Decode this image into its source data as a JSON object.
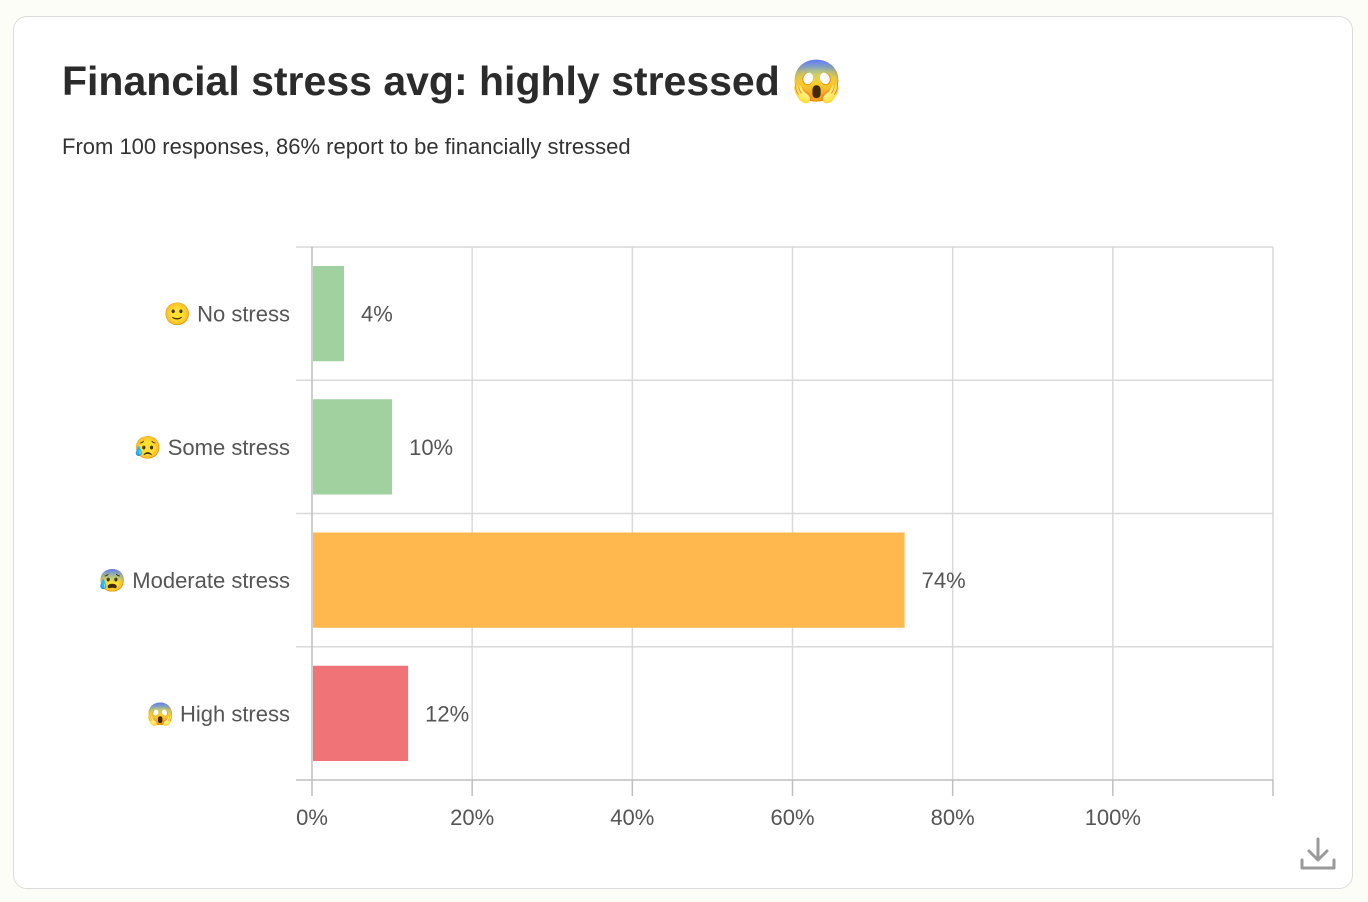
{
  "card": {
    "title": "Financial stress avg: highly stressed 😱",
    "subtitle": "From 100 responses, 86% report to be financially stressed"
  },
  "chart_data": {
    "type": "bar",
    "orientation": "horizontal",
    "categories": [
      "🙂  No stress",
      "😥  Some stress",
      "😰  Moderate stress",
      "😱  High stress"
    ],
    "values": [
      4,
      10,
      74,
      12
    ],
    "value_labels": [
      "4%",
      "10%",
      "74%",
      "12%"
    ],
    "colors": [
      "#a0d19f",
      "#a0d19f",
      "#ffb84d",
      "#f07378"
    ],
    "xlim": [
      0,
      120
    ],
    "xticks": [
      0,
      20,
      40,
      60,
      80,
      100
    ],
    "xtick_labels": [
      "0%",
      "20%",
      "40%",
      "60%",
      "80%",
      "100%"
    ],
    "grid": true,
    "legend": "none"
  },
  "actions": {
    "download_icon": "download-icon"
  }
}
